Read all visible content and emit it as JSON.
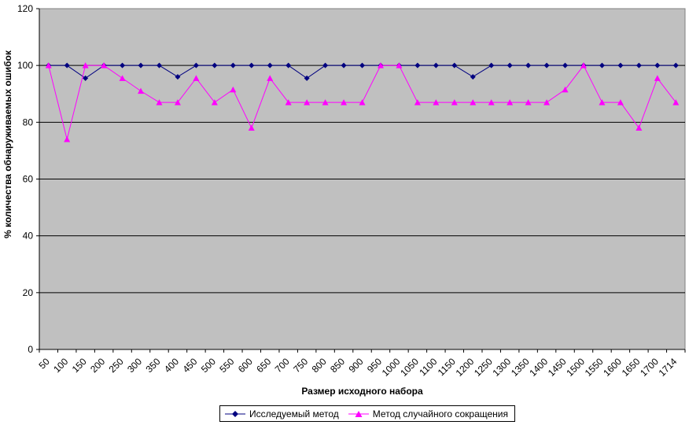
{
  "chart_data": {
    "type": "line",
    "title": "",
    "xlabel": "Размер исходного набора",
    "ylabel": "% количества обнаруживаемых ошибок",
    "ylim": [
      0,
      120
    ],
    "yticks": [
      0,
      20,
      40,
      60,
      80,
      100,
      120
    ],
    "grid": "horizontal",
    "legend_position": "bottom",
    "background_color": "#c0c0c0",
    "categories": [
      "50",
      "100",
      "150",
      "200",
      "250",
      "300",
      "350",
      "400",
      "450",
      "500",
      "550",
      "600",
      "650",
      "700",
      "750",
      "800",
      "850",
      "900",
      "950",
      "1000",
      "1050",
      "1100",
      "1150",
      "1200",
      "1250",
      "1300",
      "1350",
      "1400",
      "1450",
      "1500",
      "1550",
      "1600",
      "1650",
      "1700",
      "1714"
    ],
    "series": [
      {
        "name": "Исследуемый метод",
        "color": "#000080",
        "marker": "diamond",
        "values": [
          100,
          100,
          95.5,
          100,
          100,
          100,
          100,
          96,
          100,
          100,
          100,
          100,
          100,
          100,
          95.5,
          100,
          100,
          100,
          100,
          100,
          100,
          100,
          100,
          96,
          100,
          100,
          100,
          100,
          100,
          100,
          100,
          100,
          100,
          100,
          100
        ]
      },
      {
        "name": "Метод случайного сокращения",
        "color": "#ff00ff",
        "marker": "triangle",
        "values": [
          100,
          74,
          100,
          100,
          95.5,
          91,
          87,
          87,
          95.5,
          87,
          91.5,
          78,
          95.5,
          87,
          87,
          87,
          87,
          87,
          100,
          100,
          87,
          87,
          87,
          87,
          87,
          87,
          87,
          87,
          91.5,
          100,
          87,
          87,
          78,
          95.5,
          87
        ]
      }
    ]
  }
}
